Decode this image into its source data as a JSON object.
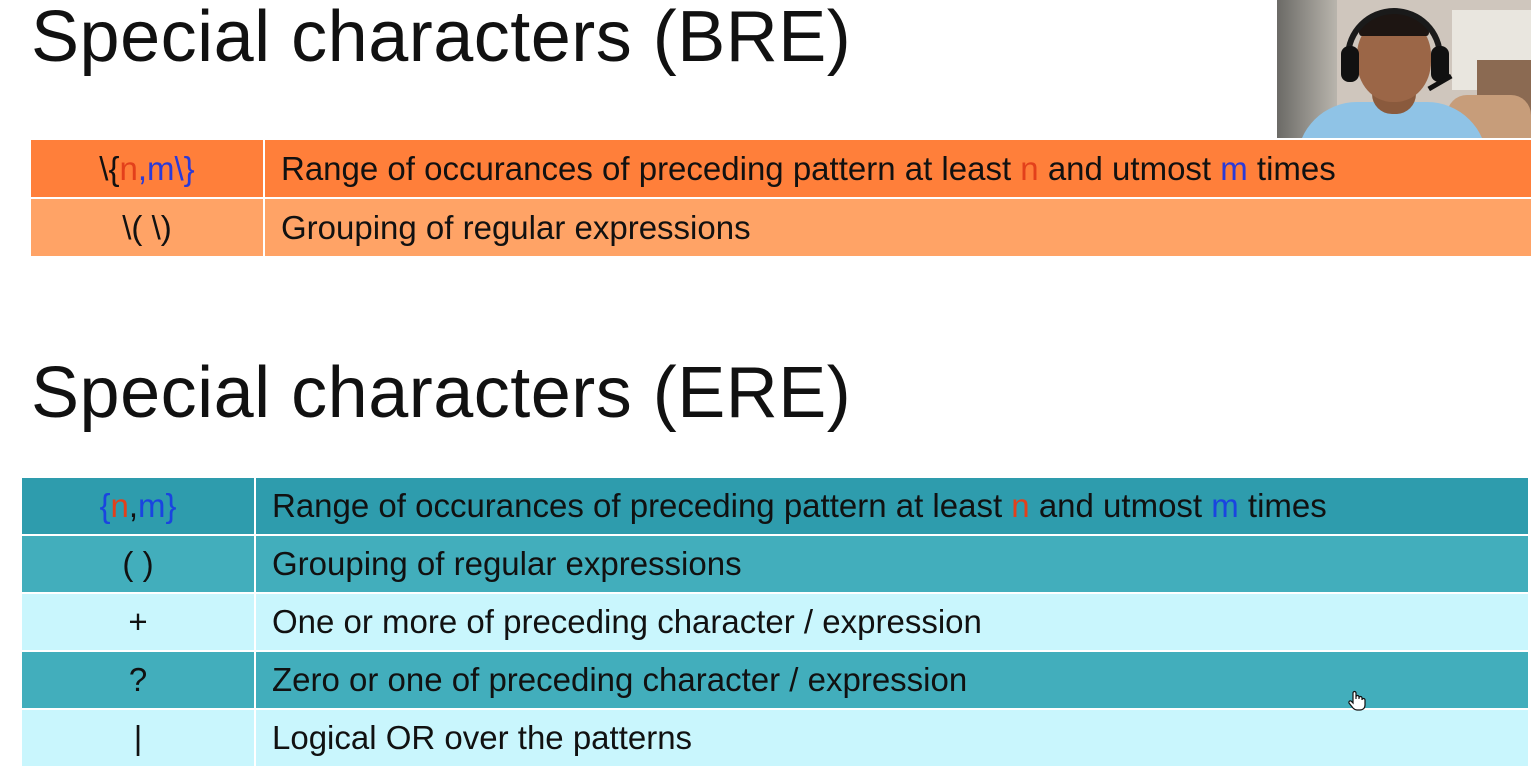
{
  "bre": {
    "title": "Special characters (BRE)",
    "rows": [
      {
        "symbol": {
          "prefix": "\\{",
          "n": "n",
          "comma": ",",
          "m": "m\\}"
        },
        "description": {
          "before": "Range of occurances of preceding pattern at least ",
          "n": "n",
          "middle": " and utmost ",
          "m": "m",
          "after": " times"
        }
      },
      {
        "symbol": "\\( \\)",
        "description": "Grouping of regular expressions"
      }
    ]
  },
  "ere": {
    "title": "Special characters (ERE)",
    "rows": [
      {
        "symbol": {
          "prefix": "{",
          "n": "n",
          "comma": ",",
          "m": "m",
          "suffix": "}"
        },
        "description": {
          "before": "Range of occurances of preceding pattern at least ",
          "n": "n",
          "middle": " and utmost ",
          "m": "m",
          "after": " times"
        }
      },
      {
        "symbol": "( )",
        "description": "Grouping of regular expressions"
      },
      {
        "symbol": "+",
        "description": "One or more of preceding character / expression"
      },
      {
        "symbol": "?",
        "description": "Zero or one of preceding character / expression"
      },
      {
        "symbol": "|",
        "description": "Logical OR over the patterns"
      }
    ]
  },
  "colors": {
    "bre_header": "#ff7f3a",
    "bre_row": "#ffa366",
    "ere_header": "#2e9cad",
    "ere_dark": "#42aebc",
    "ere_light": "#c9f6fd",
    "n_highlight": "#e3401b",
    "m_highlight": "#2a3ad8"
  },
  "icons": {
    "cursor": "hand-pointer-icon"
  }
}
